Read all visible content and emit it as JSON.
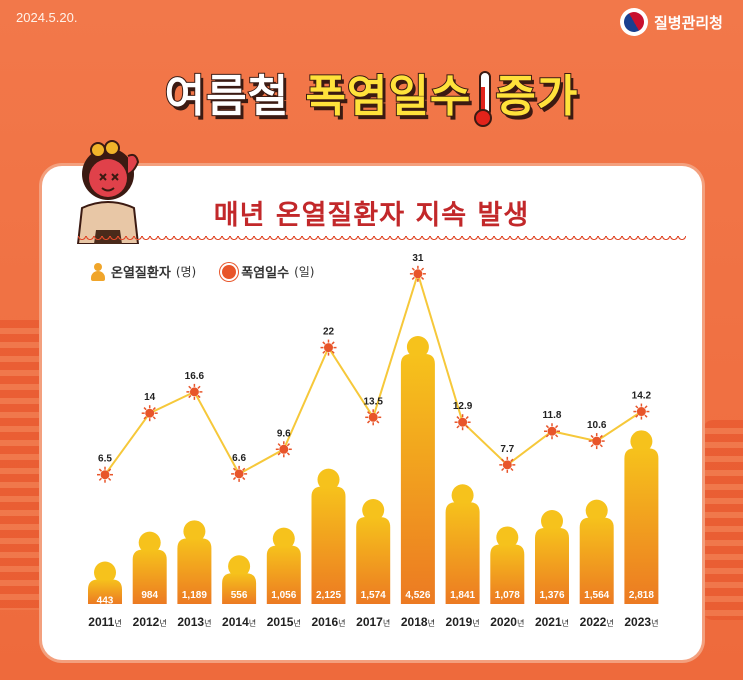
{
  "header": {
    "date": "2024.5.20.",
    "org": "질병관리청",
    "title_white": "여름철",
    "title_yellow_a": "폭염일수",
    "title_yellow_b": "증가",
    "subtitle": "매년 온열질환자 지속 발생"
  },
  "legend": {
    "patients_label": "온열질환자",
    "patients_unit": "(명)",
    "heat_label": "폭염일수",
    "heat_unit": "(일)"
  },
  "colors": {
    "bar_top": "#f6c21c",
    "bar_bottom": "#ec7a22",
    "line": "#f6c83a",
    "marker": "#e8552a"
  },
  "chart_data": {
    "type": "bar",
    "categories": [
      "2011",
      "2012",
      "2013",
      "2014",
      "2015",
      "2016",
      "2017",
      "2018",
      "2019",
      "2020",
      "2021",
      "2022",
      "2023"
    ],
    "category_suffix": "년",
    "series": [
      {
        "name": "온열질환자",
        "unit": "(명)",
        "type": "bar",
        "values": [
          443,
          984,
          1189,
          556,
          1056,
          2125,
          1574,
          4526,
          1841,
          1078,
          1376,
          1564,
          2818
        ],
        "labels": [
          "443",
          "984",
          "1,189",
          "556",
          "1,056",
          "2,125",
          "1,574",
          "4,526",
          "1,841",
          "1,078",
          "1,376",
          "1,564",
          "2,818"
        ]
      },
      {
        "name": "폭염일수",
        "unit": "(일)",
        "type": "line",
        "values": [
          6.5,
          14,
          16.6,
          6.6,
          9.6,
          22,
          13.5,
          31,
          12.9,
          7.7,
          11.8,
          10.6,
          14.2
        ],
        "labels": [
          "6.5",
          "14",
          "16.6",
          "6.6",
          "9.6",
          "22",
          "13.5",
          "31",
          "12.9",
          "7.7",
          "11.8",
          "10.6",
          "14.2"
        ]
      }
    ],
    "legend_position": "top-left",
    "grid": false
  }
}
